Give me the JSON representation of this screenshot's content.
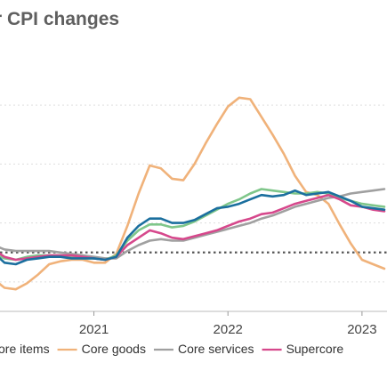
{
  "chart_data": {
    "type": "line",
    "title": "r CPI changes",
    "x_ticks": [
      "2021",
      "2022",
      "2023"
    ],
    "x_range": [
      "2020-03",
      "2023-03"
    ],
    "gridlines": "horizontal",
    "reference_line": "dotted",
    "legend_position": "bottom",
    "x": [
      "2020-03",
      "2020-04",
      "2020-05",
      "2020-06",
      "2020-07",
      "2020-08",
      "2020-09",
      "2020-10",
      "2020-11",
      "2020-12",
      "2021-01",
      "2021-02",
      "2021-03",
      "2021-04",
      "2021-05",
      "2021-06",
      "2021-07",
      "2021-08",
      "2021-09",
      "2021-10",
      "2021-11",
      "2021-12",
      "2022-01",
      "2022-02",
      "2022-03",
      "2022-04",
      "2022-05",
      "2022-06",
      "2022-07",
      "2022-08",
      "2022-09",
      "2022-10",
      "2022-11",
      "2022-12",
      "2023-01",
      "2023-02",
      "2023-03"
    ],
    "series": [
      {
        "name": "ore items",
        "color": "#1b6f9e",
        "values": [
          2.3,
          2.0,
          1.3,
          1.2,
          1.5,
          1.6,
          1.7,
          1.7,
          1.6,
          1.6,
          1.6,
          1.5,
          1.7,
          3.0,
          3.8,
          4.3,
          4.3,
          4.0,
          4.0,
          4.2,
          4.6,
          5.0,
          5.1,
          5.3,
          5.6,
          5.9,
          5.8,
          5.9,
          6.2,
          5.9,
          6.0,
          6.1,
          5.8,
          5.5,
          5.1,
          5.0,
          4.9
        ]
      },
      {
        "name": "Core goods",
        "color": "#f0b27a",
        "values": [
          0.4,
          0.2,
          -0.4,
          -0.5,
          -0.1,
          0.5,
          1.2,
          1.4,
          1.5,
          1.5,
          1.3,
          1.3,
          1.9,
          3.8,
          6.0,
          7.9,
          7.7,
          7.0,
          6.9,
          8.0,
          9.4,
          10.7,
          11.9,
          12.5,
          12.4,
          11.2,
          10.0,
          8.7,
          7.2,
          6.1,
          5.9,
          5.3,
          3.9,
          2.6,
          1.5,
          1.2,
          0.9
        ]
      },
      {
        "name": "Core services",
        "color": "#a0a0a0",
        "values": [
          2.6,
          2.5,
          2.2,
          2.1,
          2.1,
          2.1,
          2.1,
          2.0,
          1.9,
          1.8,
          1.7,
          1.6,
          1.6,
          2.1,
          2.5,
          2.8,
          2.9,
          2.8,
          2.8,
          3.0,
          3.2,
          3.4,
          3.6,
          3.8,
          4.0,
          4.3,
          4.5,
          4.8,
          5.1,
          5.3,
          5.5,
          5.7,
          5.8,
          6.0,
          6.1,
          6.2,
          6.3
        ]
      },
      {
        "name": "Supercore",
        "color": "#d6488c",
        "values": [
          2.3,
          2.2,
          1.7,
          1.5,
          1.6,
          1.7,
          1.8,
          1.8,
          1.8,
          1.7,
          1.6,
          1.5,
          1.7,
          2.5,
          3.0,
          3.5,
          3.3,
          3.0,
          2.9,
          3.1,
          3.3,
          3.5,
          3.8,
          4.1,
          4.3,
          4.6,
          4.7,
          5.0,
          5.3,
          5.5,
          5.7,
          5.9,
          5.6,
          5.2,
          5.1,
          4.9,
          4.8
        ]
      },
      {
        "name": "",
        "color": "#7fc68a",
        "values": [
          1.9,
          1.9,
          1.6,
          1.5,
          1.7,
          1.8,
          1.8,
          1.8,
          1.7,
          1.6,
          1.6,
          1.5,
          1.8,
          2.8,
          3.5,
          3.9,
          3.9,
          3.7,
          3.8,
          4.1,
          4.5,
          4.9,
          5.3,
          5.6,
          6.0,
          6.3,
          6.2,
          6.1,
          6.0,
          6.0,
          6.1,
          6.0,
          5.7,
          5.5,
          5.3,
          5.2,
          5.1
        ]
      }
    ],
    "legend": [
      "ore items",
      "Core goods",
      "Core services",
      "Supercore"
    ]
  }
}
